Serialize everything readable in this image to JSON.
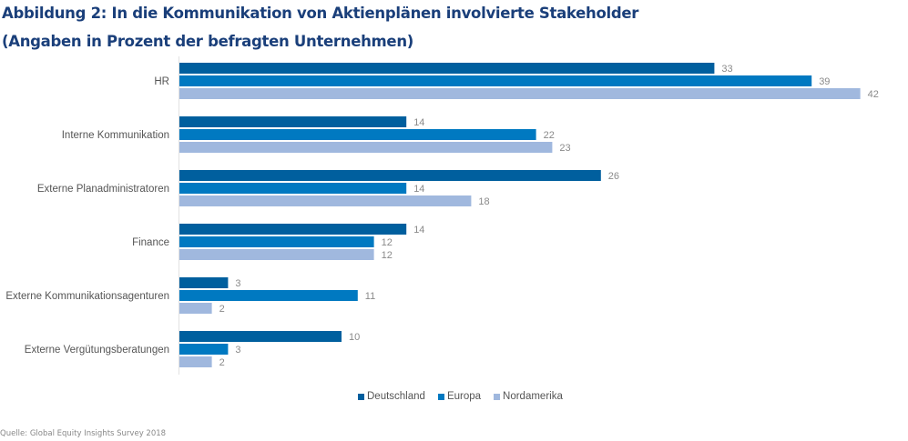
{
  "title": "Abbildung 2: In die Kommunikation von Aktienplänen involvierte Stakeholder",
  "subtitle": "(Angaben in Prozent der befragten Unternehmen)",
  "source": "Quelle: Global Equity Insights Survey 2018",
  "chart_data": {
    "type": "bar",
    "orientation": "horizontal",
    "title": "Abbildung 2: In die Kommunikation von Aktienplänen involvierte Stakeholder",
    "subtitle": "(Angaben in Prozent der befragten Unternehmen)",
    "xlabel": "",
    "ylabel": "",
    "xlim": [
      0,
      42
    ],
    "grid": false,
    "legend_position": "bottom",
    "categories": [
      "HR",
      "Interne Kommunikation",
      "Externe Planadministratoren",
      "Finance",
      "Externe Kommunikationsagenturen",
      "Externe Vergütungsberatungen"
    ],
    "series": [
      {
        "name": "Deutschland",
        "color": "#005f9e",
        "values": [
          33,
          14,
          26,
          14,
          3,
          10
        ]
      },
      {
        "name": "Europa",
        "color": "#0079c1",
        "values": [
          39,
          22,
          14,
          12,
          11,
          3
        ]
      },
      {
        "name": "Nordamerika",
        "color": "#a0b8de",
        "values": [
          42,
          23,
          18,
          12,
          2,
          2
        ]
      }
    ]
  }
}
